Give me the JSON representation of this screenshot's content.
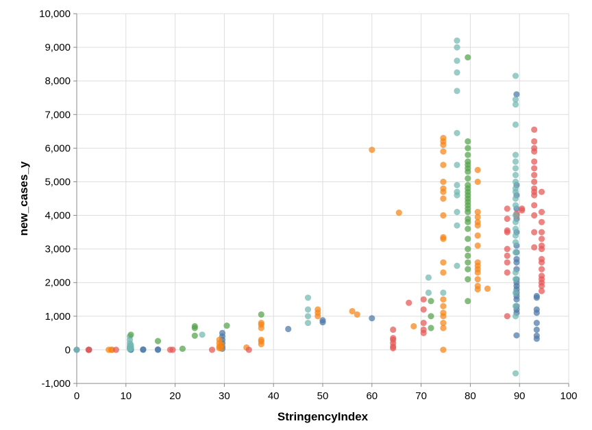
{
  "chart_data": {
    "type": "scatter",
    "xlabel": "StringencyIndex",
    "ylabel": "new_cases_y",
    "xlim": [
      0,
      100
    ],
    "ylim": [
      -1000,
      10000
    ],
    "x_ticks": [
      0,
      10,
      20,
      30,
      40,
      50,
      60,
      70,
      80,
      90,
      100
    ],
    "y_ticks": [
      -1000,
      0,
      1000,
      2000,
      3000,
      4000,
      5000,
      6000,
      7000,
      8000,
      9000,
      10000
    ],
    "x_tick_labels": [
      "0",
      "10",
      "20",
      "30",
      "40",
      "50",
      "60",
      "70",
      "80",
      "90",
      "100"
    ],
    "y_tick_labels": [
      "-1,000",
      "0",
      "1,000",
      "2,000",
      "3,000",
      "4,000",
      "5,000",
      "6,000",
      "7,000",
      "8,000",
      "9,000",
      "10,000"
    ],
    "grid": true,
    "legend": "none",
    "series": [
      {
        "name": "series-blue",
        "color": "#4c78a8",
        "points": [
          [
            0,
            0
          ],
          [
            2.5,
            0
          ],
          [
            11,
            0
          ],
          [
            11,
            10
          ],
          [
            11,
            20
          ],
          [
            13.5,
            0
          ],
          [
            13.5,
            10
          ],
          [
            16.5,
            0
          ],
          [
            16.5,
            10
          ],
          [
            29.6,
            30
          ],
          [
            29.6,
            100
          ],
          [
            29.6,
            200
          ],
          [
            29.6,
            300
          ],
          [
            29.6,
            400
          ],
          [
            29.6,
            500
          ],
          [
            43,
            620
          ],
          [
            50,
            820
          ],
          [
            50,
            880
          ],
          [
            60,
            940
          ],
          [
            89.4,
            430
          ],
          [
            89.4,
            1100
          ],
          [
            89.4,
            1200
          ],
          [
            89.4,
            1300
          ],
          [
            89.4,
            1500
          ],
          [
            89.4,
            1600
          ],
          [
            89.4,
            1700
          ],
          [
            89.4,
            1800
          ],
          [
            89.4,
            1900
          ],
          [
            89.4,
            2000
          ],
          [
            89.4,
            2100
          ],
          [
            89.4,
            2400
          ],
          [
            89.4,
            2600
          ],
          [
            89.4,
            2700
          ],
          [
            89.4,
            2900
          ],
          [
            89.4,
            3100
          ],
          [
            89.4,
            3500
          ],
          [
            89.4,
            3900
          ],
          [
            89.4,
            4200
          ],
          [
            89.4,
            4600
          ],
          [
            89.4,
            4900
          ],
          [
            89.4,
            7600
          ],
          [
            93.5,
            330
          ],
          [
            93.5,
            420
          ],
          [
            93.5,
            600
          ],
          [
            93.5,
            800
          ],
          [
            93.5,
            1100
          ],
          [
            93.5,
            1200
          ],
          [
            93.5,
            1550
          ],
          [
            93.5,
            1600
          ]
        ]
      },
      {
        "name": "series-orange",
        "color": "#f58518",
        "points": [
          [
            6.5,
            0
          ],
          [
            7,
            0
          ],
          [
            7.2,
            0
          ],
          [
            29,
            50
          ],
          [
            29,
            100
          ],
          [
            29,
            200
          ],
          [
            29,
            300
          ],
          [
            29.4,
            60
          ],
          [
            29.4,
            150
          ],
          [
            34.5,
            70
          ],
          [
            37.5,
            170
          ],
          [
            37.5,
            250
          ],
          [
            37.5,
            300
          ],
          [
            37.5,
            650
          ],
          [
            37.5,
            750
          ],
          [
            37.5,
            800
          ],
          [
            49,
            1000
          ],
          [
            49,
            1100
          ],
          [
            49,
            1200
          ],
          [
            56,
            1150
          ],
          [
            57,
            1050
          ],
          [
            60,
            5950
          ],
          [
            65.5,
            4080
          ],
          [
            68.5,
            700
          ],
          [
            74.5,
            0
          ],
          [
            74.5,
            650
          ],
          [
            74.5,
            800
          ],
          [
            74.5,
            1000
          ],
          [
            74.5,
            1100
          ],
          [
            74.5,
            1300
          ],
          [
            74.5,
            1500
          ],
          [
            74.5,
            2300
          ],
          [
            74.5,
            2600
          ],
          [
            74.5,
            3300
          ],
          [
            74.5,
            3350
          ],
          [
            74.5,
            4000
          ],
          [
            74.5,
            4500
          ],
          [
            74.5,
            4700
          ],
          [
            74.5,
            4800
          ],
          [
            74.5,
            5000
          ],
          [
            74.5,
            5500
          ],
          [
            74.5,
            5900
          ],
          [
            74.5,
            6100
          ],
          [
            74.5,
            6200
          ],
          [
            74.5,
            6300
          ],
          [
            81.5,
            1800
          ],
          [
            81.5,
            1900
          ],
          [
            81.5,
            2100
          ],
          [
            81.5,
            2300
          ],
          [
            81.5,
            2400
          ],
          [
            81.5,
            2500
          ],
          [
            81.5,
            2600
          ],
          [
            81.5,
            3100
          ],
          [
            81.5,
            3400
          ],
          [
            81.5,
            3700
          ],
          [
            81.5,
            3800
          ],
          [
            81.5,
            3950
          ],
          [
            81.5,
            4100
          ],
          [
            81.5,
            5000
          ],
          [
            81.5,
            5350
          ],
          [
            83.5,
            1820
          ]
        ]
      },
      {
        "name": "series-red",
        "color": "#e45756",
        "points": [
          [
            2.4,
            0
          ],
          [
            2.5,
            0
          ],
          [
            8,
            0
          ],
          [
            19,
            0
          ],
          [
            19.5,
            0
          ],
          [
            27.5,
            0
          ],
          [
            35,
            0
          ],
          [
            64.3,
            50
          ],
          [
            64.3,
            100
          ],
          [
            64.3,
            200
          ],
          [
            64.3,
            300
          ],
          [
            64.3,
            350
          ],
          [
            64.3,
            600
          ],
          [
            67.5,
            1400
          ],
          [
            70.5,
            500
          ],
          [
            70.5,
            600
          ],
          [
            70.5,
            800
          ],
          [
            70.5,
            1200
          ],
          [
            70.5,
            1500
          ],
          [
            87.5,
            1000
          ],
          [
            87.5,
            2300
          ],
          [
            87.5,
            2600
          ],
          [
            87.5,
            2800
          ],
          [
            87.5,
            3000
          ],
          [
            87.5,
            3500
          ],
          [
            87.5,
            3550
          ],
          [
            87.5,
            3900
          ],
          [
            87.5,
            4200
          ],
          [
            89.4,
            4000
          ],
          [
            89.4,
            4050
          ],
          [
            90.5,
            4150
          ],
          [
            90.5,
            4200
          ],
          [
            93,
            3050
          ],
          [
            93,
            3500
          ],
          [
            93,
            4000
          ],
          [
            93,
            4300
          ],
          [
            93,
            4600
          ],
          [
            93,
            4700
          ],
          [
            93,
            4800
          ],
          [
            93,
            5000
          ],
          [
            93,
            5200
          ],
          [
            93,
            5400
          ],
          [
            93,
            5600
          ],
          [
            93,
            5900
          ],
          [
            93,
            6000
          ],
          [
            93,
            6200
          ],
          [
            93,
            6550
          ],
          [
            94.5,
            1750
          ],
          [
            94.5,
            1900
          ],
          [
            94.5,
            2000
          ],
          [
            94.5,
            2100
          ],
          [
            94.5,
            2200
          ],
          [
            94.5,
            2400
          ],
          [
            94.5,
            2600
          ],
          [
            94.5,
            2700
          ],
          [
            94.5,
            3000
          ],
          [
            94.5,
            3100
          ],
          [
            94.5,
            3300
          ],
          [
            94.5,
            3500
          ],
          [
            94.5,
            3800
          ],
          [
            94.5,
            4100
          ],
          [
            94.5,
            4700
          ]
        ]
      },
      {
        "name": "series-teal",
        "color": "#72b7b2",
        "points": [
          [
            0,
            0
          ],
          [
            10.8,
            20
          ],
          [
            10.8,
            50
          ],
          [
            10.8,
            80
          ],
          [
            10.8,
            120
          ],
          [
            10.8,
            200
          ],
          [
            10.8,
            300
          ],
          [
            10.8,
            400
          ],
          [
            11,
            30
          ],
          [
            11,
            60
          ],
          [
            11,
            100
          ],
          [
            11,
            150
          ],
          [
            25.5,
            450
          ],
          [
            47,
            800
          ],
          [
            47,
            1000
          ],
          [
            47,
            1200
          ],
          [
            47,
            1550
          ],
          [
            71.5,
            1700
          ],
          [
            71.5,
            2150
          ],
          [
            74.5,
            1700
          ],
          [
            77.3,
            2500
          ],
          [
            77.3,
            3700
          ],
          [
            77.3,
            4100
          ],
          [
            77.3,
            4600
          ],
          [
            77.3,
            4700
          ],
          [
            77.3,
            4900
          ],
          [
            77.3,
            5500
          ],
          [
            77.3,
            6450
          ],
          [
            77.3,
            7700
          ],
          [
            77.3,
            8250
          ],
          [
            77.3,
            8600
          ],
          [
            77.3,
            9000
          ],
          [
            77.3,
            9200
          ],
          [
            89.2,
            -700
          ],
          [
            89.2,
            1000
          ],
          [
            89.2,
            1300
          ],
          [
            89.2,
            1700
          ],
          [
            89.2,
            2100
          ],
          [
            89.2,
            2300
          ],
          [
            89.2,
            2900
          ],
          [
            89.2,
            3200
          ],
          [
            89.2,
            3400
          ],
          [
            89.2,
            3600
          ],
          [
            89.2,
            3800
          ],
          [
            89.2,
            4000
          ],
          [
            89.2,
            4300
          ],
          [
            89.2,
            4500
          ],
          [
            89.2,
            4700
          ],
          [
            89.2,
            4800
          ],
          [
            89.2,
            5000
          ],
          [
            89.2,
            5200
          ],
          [
            89.2,
            5400
          ],
          [
            89.2,
            5600
          ],
          [
            89.2,
            5800
          ],
          [
            89.2,
            6700
          ],
          [
            89.2,
            7300
          ],
          [
            89.2,
            7450
          ],
          [
            89.2,
            8150
          ]
        ]
      },
      {
        "name": "series-green",
        "color": "#54a24b",
        "points": [
          [
            11,
            450
          ],
          [
            16.5,
            260
          ],
          [
            21.5,
            30
          ],
          [
            24,
            420
          ],
          [
            24,
            650
          ],
          [
            24,
            700
          ],
          [
            30.5,
            720
          ],
          [
            37.5,
            1050
          ],
          [
            72,
            650
          ],
          [
            72,
            1000
          ],
          [
            72,
            1450
          ],
          [
            79.5,
            1450
          ],
          [
            79.5,
            2100
          ],
          [
            79.5,
            2400
          ],
          [
            79.5,
            2600
          ],
          [
            79.5,
            2800
          ],
          [
            79.5,
            3000
          ],
          [
            79.5,
            3300
          ],
          [
            79.5,
            3600
          ],
          [
            79.5,
            3800
          ],
          [
            79.5,
            3900
          ],
          [
            79.5,
            4100
          ],
          [
            79.5,
            4200
          ],
          [
            79.5,
            4300
          ],
          [
            79.5,
            4400
          ],
          [
            79.5,
            4500
          ],
          [
            79.5,
            4600
          ],
          [
            79.5,
            4700
          ],
          [
            79.5,
            4800
          ],
          [
            79.5,
            4900
          ],
          [
            79.5,
            5100
          ],
          [
            79.5,
            5300
          ],
          [
            79.5,
            5400
          ],
          [
            79.5,
            5500
          ],
          [
            79.5,
            5600
          ],
          [
            79.5,
            5800
          ],
          [
            79.5,
            6000
          ],
          [
            79.5,
            6200
          ],
          [
            79.5,
            8700
          ]
        ]
      }
    ]
  }
}
